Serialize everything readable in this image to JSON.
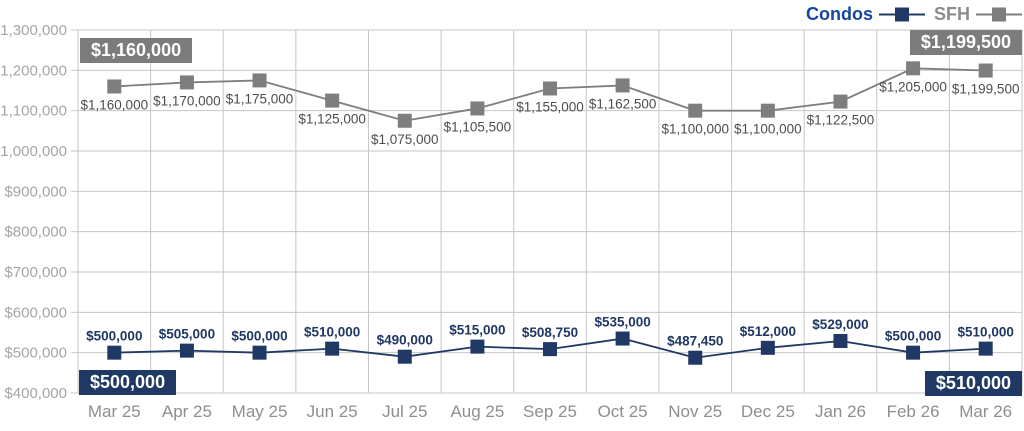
{
  "chart_data": {
    "type": "line",
    "title": "",
    "categories": [
      "Mar 25",
      "Apr 25",
      "May 25",
      "Jun 25",
      "Jul 25",
      "Aug 25",
      "Sep 25",
      "Oct 25",
      "Nov 25",
      "Dec 25",
      "Jan 26",
      "Feb 26",
      "Mar 26"
    ],
    "series": [
      {
        "name": "Condos",
        "color": "#1F3864",
        "label_color": "#1F3864",
        "label_weight": "bold",
        "label_position": "above",
        "values": [
          500000,
          505000,
          500000,
          510000,
          490000,
          515000,
          508750,
          535000,
          487450,
          512000,
          529000,
          500000,
          510000
        ],
        "labels": [
          "$500,000",
          "$505,000",
          "$500,000",
          "$510,000",
          "$490,000",
          "$515,000",
          "$508,750",
          "$535,000",
          "$487,450",
          "$512,000",
          "$529,000",
          "$500,000",
          "$510,000"
        ]
      },
      {
        "name": "SFH",
        "color": "#7E7E7E",
        "label_color": "#4D4D4D",
        "label_weight": "normal",
        "label_position": "below",
        "values": [
          1160000,
          1170000,
          1175000,
          1125000,
          1075000,
          1105500,
          1155000,
          1162500,
          1100000,
          1100000,
          1122500,
          1205000,
          1199500
        ],
        "labels": [
          "$1,160,000",
          "$1,170,000",
          "$1,175,000",
          "$1,125,000",
          "$1,075,000",
          "$1,105,500",
          "$1,155,000",
          "$1,162,500",
          "$1,100,000",
          "$1,100,000",
          "$1,122,500",
          "$1,205,000",
          "$1,199,500"
        ]
      }
    ],
    "ylim": [
      400000,
      1300000
    ],
    "yticks": {
      "values": [
        400000,
        500000,
        600000,
        700000,
        800000,
        900000,
        1000000,
        1100000,
        1200000,
        1300000
      ],
      "labels": [
        "$400,000",
        "$500,000",
        "$600,000",
        "$700,000",
        "$800,000",
        "$900,000",
        "$1,000,000",
        "$1,100,000",
        "$1,200,000",
        "$1,300,000"
      ]
    },
    "grid": true,
    "grid_color": "#C6C6C6",
    "ytick_label_color": "#A5A5A5",
    "xtick_label_color": "#8E8E8E",
    "legend_position": "top-right"
  },
  "legend": {
    "condos_label": "Condos",
    "condos_text_color": "#17469E",
    "sfh_label": "SFH",
    "sfh_text_color": "#8C8C8C"
  },
  "badges": {
    "sfh_start": {
      "text": "$1,160,000",
      "bg": "#7C7C7C"
    },
    "sfh_end": {
      "text": "$1,199,500",
      "bg": "#7C7C7C"
    },
    "condos_start": {
      "text": "$500,000",
      "bg": "#1F3864"
    },
    "condos_end": {
      "text": "$510,000",
      "bg": "#1F3864"
    }
  }
}
